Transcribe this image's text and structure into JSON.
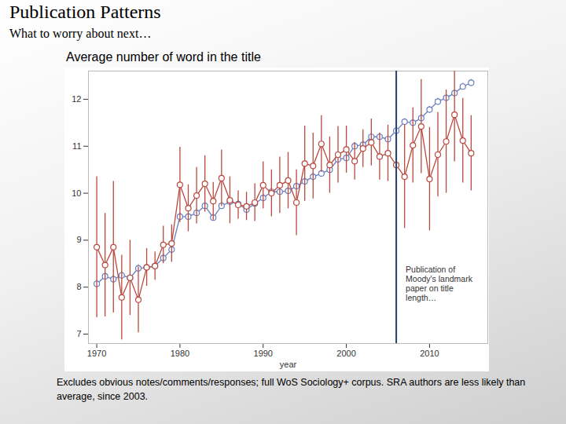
{
  "header": {
    "title": "Publication Patterns",
    "subtitle": "What to worry about next…"
  },
  "chart_data": {
    "type": "line",
    "title": "Average number of word in the title",
    "x_label": "year",
    "caption": "Excludes obvious notes/comments/responses; full WoS Sociology+ corpus.  SRA authors are less likely than average, since 2003.",
    "x": [
      1970,
      1971,
      1972,
      1973,
      1974,
      1975,
      1976,
      1977,
      1978,
      1979,
      1980,
      1981,
      1982,
      1983,
      1984,
      1985,
      1986,
      1987,
      1988,
      1989,
      1990,
      1991,
      1992,
      1993,
      1994,
      1995,
      1996,
      1997,
      1998,
      1999,
      2000,
      2001,
      2002,
      2003,
      2004,
      2005,
      2006,
      2007,
      2008,
      2009,
      2010,
      2011,
      2012,
      2013,
      2014,
      2015
    ],
    "series": [
      {
        "color": "#6b7fbf",
        "marker": "circle",
        "values": [
          8.07,
          8.23,
          8.17,
          8.25,
          8.2,
          8.4,
          8.42,
          8.45,
          8.62,
          8.8,
          9.5,
          9.5,
          9.58,
          9.73,
          9.48,
          9.73,
          9.82,
          9.77,
          9.65,
          9.78,
          9.9,
          10.03,
          10.03,
          10.05,
          10.15,
          10.25,
          10.35,
          10.42,
          10.5,
          10.72,
          10.75,
          11.0,
          11.03,
          11.2,
          11.2,
          11.15,
          11.33,
          11.52,
          11.5,
          11.6,
          11.78,
          11.95,
          12.03,
          12.13,
          12.27,
          12.35
        ],
        "errors": [
          0.08,
          0.08,
          0.08,
          0.08,
          0.08,
          0.08,
          0.08,
          0.08,
          0.08,
          0.08,
          0.07,
          0.07,
          0.07,
          0.07,
          0.07,
          0.07,
          0.07,
          0.07,
          0.07,
          0.07,
          0.07,
          0.07,
          0.07,
          0.07,
          0.07,
          0.07,
          0.07,
          0.07,
          0.07,
          0.07,
          0.07,
          0.07,
          0.07,
          0.07,
          0.07,
          0.07,
          0.07,
          0.07,
          0.07,
          0.07,
          0.07,
          0.07,
          0.07,
          0.07,
          0.07,
          0.07
        ]
      },
      {
        "color": "#b94a3e",
        "marker": "circle",
        "values": [
          8.85,
          8.47,
          8.85,
          7.78,
          8.2,
          7.73,
          8.42,
          8.45,
          8.9,
          8.93,
          10.18,
          9.68,
          9.95,
          10.2,
          9.83,
          10.32,
          9.85,
          9.75,
          9.72,
          9.8,
          10.17,
          10.0,
          10.17,
          10.27,
          9.8,
          10.63,
          10.58,
          11.05,
          10.6,
          10.82,
          10.93,
          10.68,
          10.95,
          11.08,
          10.78,
          10.85,
          10.6,
          10.35,
          11.02,
          11.42,
          10.3,
          10.82,
          11.1,
          11.67,
          11.12,
          10.85
        ],
        "errors": [
          1.5,
          1.1,
          1.4,
          0.9,
          0.8,
          0.7,
          0.4,
          0.3,
          0.4,
          0.4,
          0.8,
          0.5,
          0.6,
          0.6,
          0.4,
          0.6,
          0.5,
          0.3,
          0.3,
          0.4,
          0.5,
          0.5,
          0.6,
          0.6,
          0.7,
          0.8,
          0.7,
          0.6,
          0.6,
          0.6,
          0.5,
          0.4,
          0.4,
          0.5,
          0.5,
          0.6,
          0.7,
          1.1,
          0.8,
          1.0,
          1.1,
          0.9,
          1.1,
          1.0,
          0.9,
          0.8
        ]
      }
    ],
    "xlim": [
      1969,
      2017
    ],
    "xticks": [
      1970,
      1980,
      1990,
      2000,
      2010
    ],
    "ylim": [
      6.8,
      12.6
    ],
    "yticks": [
      7,
      8,
      9,
      10,
      11,
      12
    ],
    "annotations": [
      {
        "x": 2006,
        "text": "Publication of\nMoody's landmark\npaper on title\nlength…"
      }
    ]
  }
}
